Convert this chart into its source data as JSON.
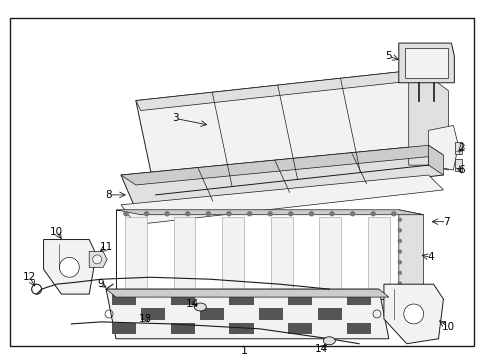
{
  "background_color": "#ffffff",
  "border_color": "#000000",
  "label_color": "#000000",
  "figsize": [
    4.89,
    3.6
  ],
  "dpi": 100,
  "line_color": "#1a1a1a",
  "fill_light": "#f2f2f2",
  "fill_mid": "#e0e0e0",
  "fill_dark": "#cccccc",
  "fill_darkest": "#999999"
}
